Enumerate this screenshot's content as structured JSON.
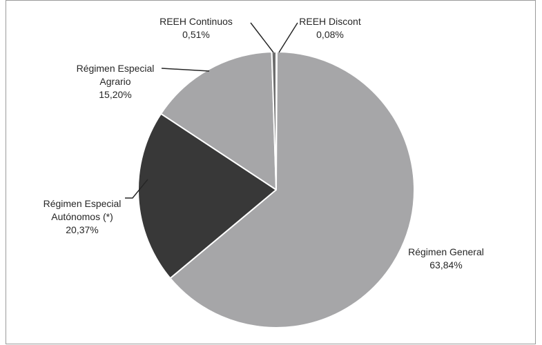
{
  "chart_data": {
    "type": "pie",
    "slices": [
      {
        "label_lines": [
          "REEH Discont"
        ],
        "value_label": "0,08%",
        "value": 0.08,
        "color": "#5b5b5b"
      },
      {
        "label_lines": [
          "Régimen General"
        ],
        "value_label": "63,84%",
        "value": 63.84,
        "color": "#a6a6a8"
      },
      {
        "label_lines": [
          "Régimen Especial",
          "Autónomos (*)"
        ],
        "value_label": "20,37%",
        "value": 20.37,
        "color": "#383838"
      },
      {
        "label_lines": [
          "Régimen Especial",
          "Agrario"
        ],
        "value_label": "15,20%",
        "value": 15.2,
        "color": "#a6a6a8"
      },
      {
        "label_lines": [
          "REEH Continuos"
        ],
        "value_label": "0,51%",
        "value": 0.51,
        "color": "#6e6e6e"
      }
    ],
    "legend": "none"
  }
}
